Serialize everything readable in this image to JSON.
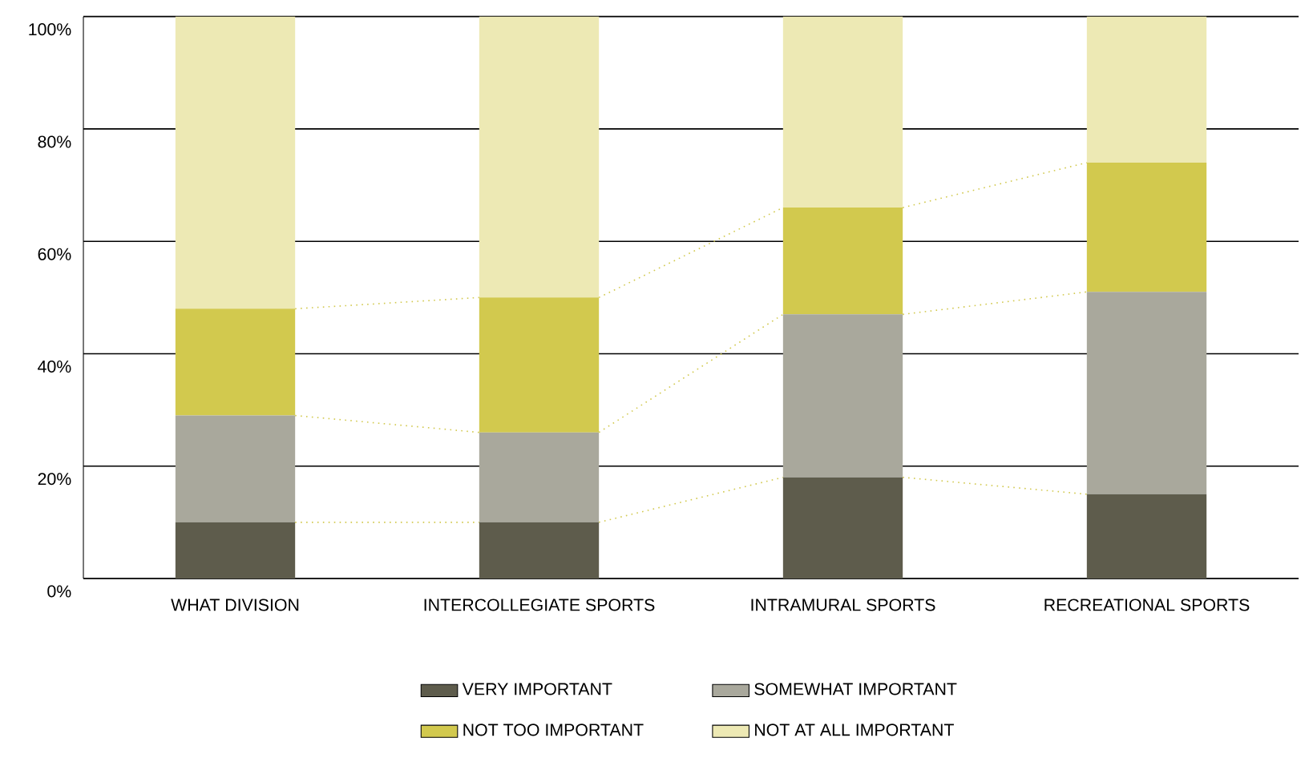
{
  "chart_data": {
    "type": "bar",
    "stacked": true,
    "categories": [
      "WHAT DIVISION",
      "INTERCOLLEGIATE SPORTS",
      "INTRAMURAL SPORTS",
      "RECREATIONAL SPORTS"
    ],
    "series": [
      {
        "name": "VERY IMPORTANT",
        "color": "#5e5c4c",
        "values": [
          10,
          10,
          18,
          15
        ]
      },
      {
        "name": "SOMEWHAT IMPORTANT",
        "color": "#a9a89c",
        "values": [
          19,
          16,
          29,
          36
        ]
      },
      {
        "name": "NOT TOO IMPORTANT",
        "color": "#d2c94e",
        "values": [
          19,
          24,
          19,
          23
        ]
      },
      {
        "name": "NOT AT ALL IMPORTANT",
        "color": "#ede9b4",
        "values": [
          52,
          50,
          34,
          26
        ]
      }
    ],
    "ylim": [
      0,
      100
    ],
    "yticks": [
      {
        "value": 0,
        "label": "0%"
      },
      {
        "value": 20,
        "label": "20%"
      },
      {
        "value": 40,
        "label": "40%"
      },
      {
        "value": 60,
        "label": "60%"
      },
      {
        "value": 80,
        "label": "80%"
      },
      {
        "value": 100,
        "label": "100%"
      }
    ],
    "grid": "y",
    "legend": "bottom"
  }
}
